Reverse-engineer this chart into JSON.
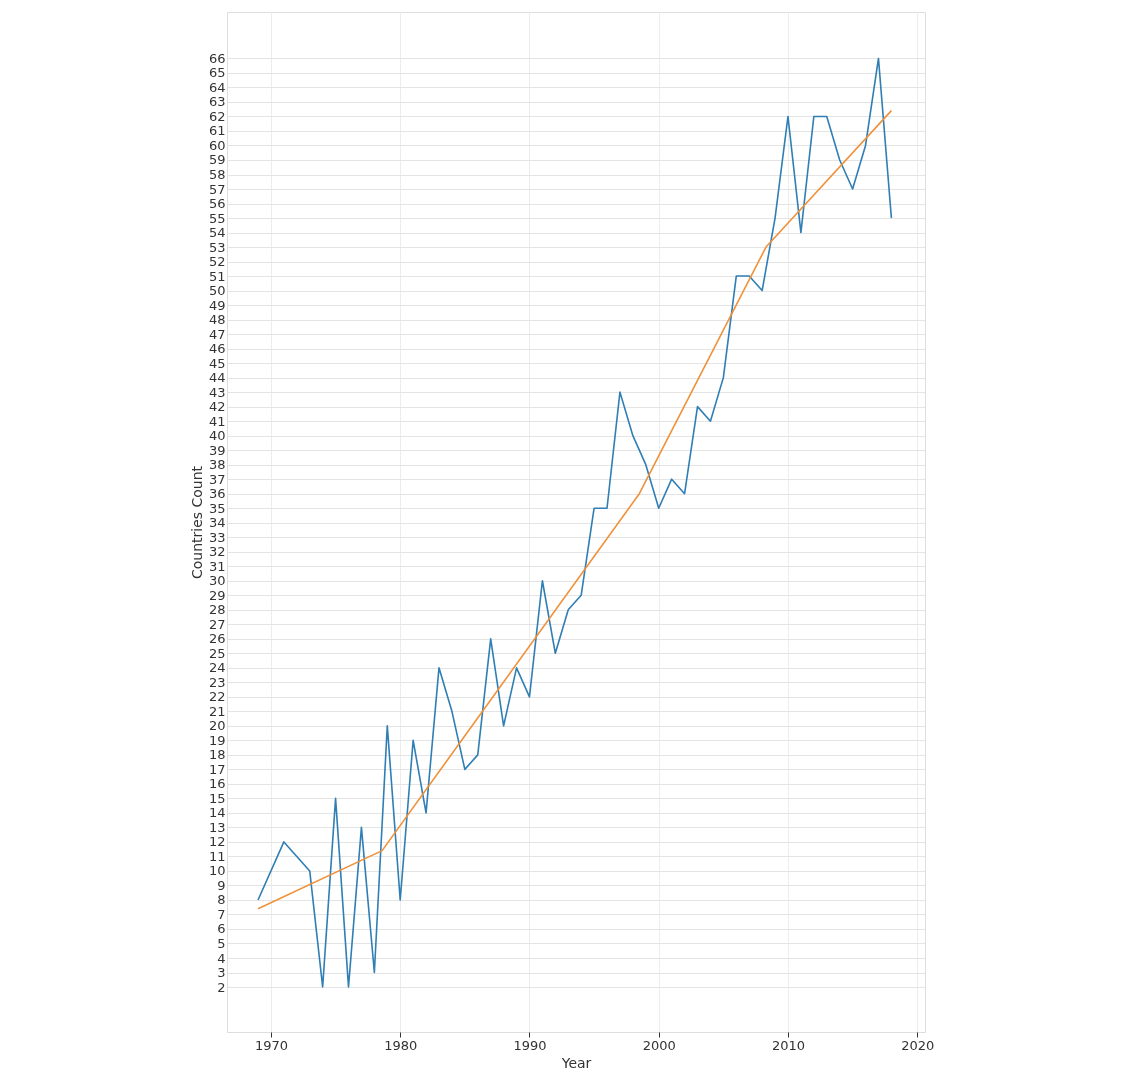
{
  "chart_data": {
    "type": "line",
    "xlabel": "Year",
    "ylabel": "Countries Count",
    "xlim": [
      1966.6,
      2020.6
    ],
    "xticks": [
      1970,
      1980,
      1990,
      2000,
      2010,
      2020
    ],
    "ylim": [
      -1.1,
      69.2
    ],
    "yticks": [
      2,
      3,
      4,
      5,
      6,
      7,
      8,
      9,
      10,
      11,
      12,
      13,
      14,
      15,
      16,
      17,
      18,
      19,
      20,
      21,
      22,
      23,
      24,
      25,
      26,
      27,
      28,
      29,
      30,
      31,
      32,
      33,
      34,
      35,
      36,
      37,
      38,
      39,
      40,
      41,
      42,
      43,
      44,
      45,
      46,
      47,
      48,
      49,
      50,
      51,
      52,
      53,
      54,
      55,
      56,
      57,
      58,
      59,
      60,
      61,
      62,
      63,
      64,
      65,
      66
    ],
    "grid": true,
    "legend": false,
    "series": [
      {
        "type": "line",
        "color": "#2f7eb4",
        "x": [
          1969,
          1971,
          1973,
          1974,
          1975,
          1976,
          1977,
          1978,
          1979,
          1980,
          1981,
          1982,
          1983,
          1984,
          1985,
          1986,
          1987,
          1988,
          1989,
          1990,
          1991,
          1992,
          1993,
          1994,
          1995,
          1996,
          1997,
          1998,
          1999,
          2000,
          2001,
          2002,
          2003,
          2004,
          2005,
          2006,
          2007,
          2008,
          2009,
          2010,
          2011,
          2012,
          2013,
          2014,
          2015,
          2016,
          2017,
          2018
        ],
        "values": [
          8,
          12,
          10,
          2,
          15,
          2,
          13,
          3,
          20,
          8,
          19,
          14,
          24,
          21,
          17,
          18,
          26,
          20,
          24,
          22,
          30,
          25,
          28,
          29,
          35,
          35,
          43,
          40,
          38,
          35,
          37,
          36,
          42,
          41,
          44,
          51,
          51,
          50,
          55,
          62,
          54,
          62,
          62,
          59,
          57,
          60,
          66,
          55
        ]
      },
      {
        "color": "#f0913a",
        "x": [
          1969,
          1978.6,
          1998.5,
          2008.3,
          2018
        ],
        "values": [
          7.4,
          11.4,
          36,
          53,
          62.4
        ]
      }
    ]
  }
}
